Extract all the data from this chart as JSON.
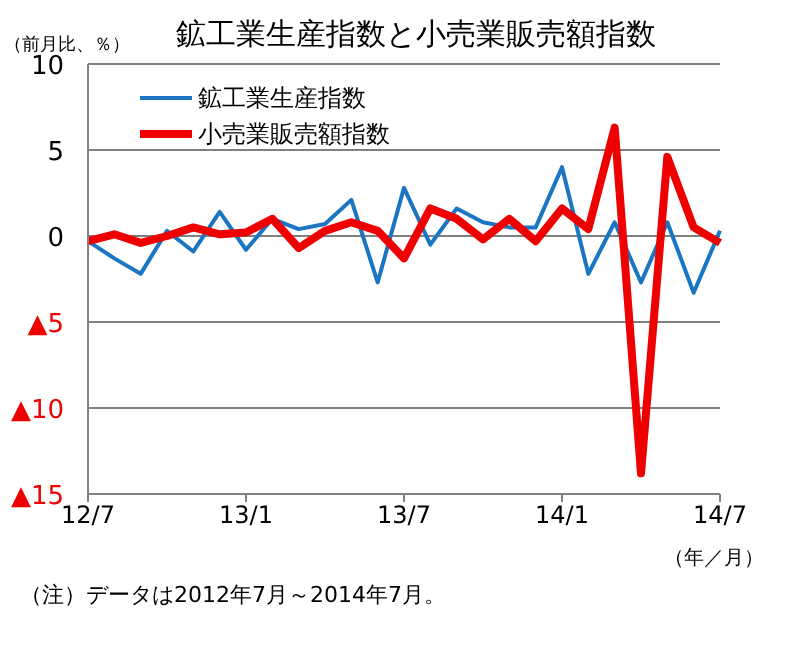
{
  "chart_data": {
    "type": "line",
    "title": "鉱工業生産指数と小売業販売額指数",
    "ylabel": "（前月比、％）",
    "xlabel": "（年／月）",
    "categories": [
      "12/7",
      null,
      null,
      null,
      null,
      null,
      "13/1",
      null,
      null,
      null,
      null,
      null,
      "13/7",
      null,
      null,
      null,
      null,
      null,
      "14/1",
      null,
      null,
      null,
      null,
      null,
      "14/7"
    ],
    "series": [
      {
        "name": "鉱工業生産指数",
        "color": "#1a75c2",
        "values": [
          -0.3,
          -1.3,
          -2.2,
          0.3,
          -0.9,
          1.4,
          -0.8,
          1.0,
          0.4,
          0.7,
          2.1,
          -2.7,
          2.8,
          -0.5,
          1.6,
          0.8,
          0.5,
          0.5,
          4.0,
          -2.2,
          0.8,
          -2.7,
          0.8,
          -3.3,
          0.3
        ]
      },
      {
        "name": "小売業販売額指数",
        "color": "#ee0000",
        "values": [
          -0.3,
          0.1,
          -0.4,
          0.0,
          0.5,
          0.1,
          0.2,
          1.0,
          -0.7,
          0.3,
          0.8,
          0.3,
          -1.3,
          1.6,
          1.0,
          -0.2,
          1.0,
          -0.3,
          1.6,
          0.4,
          6.3,
          -13.8,
          4.6,
          0.5,
          -0.4
        ]
      }
    ],
    "ylim": [
      -15,
      10
    ],
    "yticks": [
      10,
      5,
      0,
      {
        "value": -5,
        "label": "▲5"
      },
      {
        "value": -10,
        "label": "▲10"
      },
      {
        "value": -15,
        "label": "▲15"
      }
    ],
    "grid": "y",
    "legend": "top left",
    "marker": "none",
    "annotations": [
      "（注）データは2012年7月～2014年7月。"
    ]
  }
}
